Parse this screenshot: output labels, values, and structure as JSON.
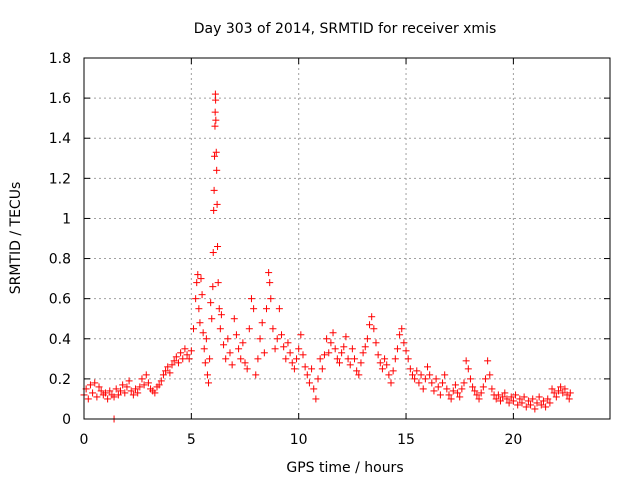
{
  "chart_data": {
    "type": "scatter",
    "title": "Day 303 of 2014, SRMTID for receiver xmis",
    "xlabel": "GPS time / hours",
    "ylabel": "SRMTID / TECUs",
    "xlim": [
      0,
      24.5
    ],
    "ylim": [
      0,
      1.8
    ],
    "xticks": [
      0,
      5,
      10,
      15,
      20
    ],
    "yticks": [
      0,
      0.2,
      0.4,
      0.6,
      0.8,
      1,
      1.2,
      1.4,
      1.6,
      1.8
    ],
    "xtick_labels": [
      "0",
      "5",
      "10",
      "15",
      "20"
    ],
    "ytick_labels": [
      "0",
      "0.2",
      "0.4",
      "0.6",
      "0.8",
      "1",
      "1.2",
      "1.4",
      "1.6",
      "1.8"
    ],
    "grid": true,
    "marker": "+",
    "series": [
      {
        "name": "SRMTID",
        "color": "#ff0000",
        "points": [
          [
            0.0,
            0.12
          ],
          [
            0.1,
            0.15
          ],
          [
            0.2,
            0.1
          ],
          [
            0.3,
            0.17
          ],
          [
            0.4,
            0.13
          ],
          [
            0.5,
            0.18
          ],
          [
            0.6,
            0.11
          ],
          [
            0.7,
            0.16
          ],
          [
            0.8,
            0.14
          ],
          [
            0.9,
            0.12
          ],
          [
            1.0,
            0.13
          ],
          [
            1.1,
            0.1
          ],
          [
            1.2,
            0.14
          ],
          [
            1.3,
            0.12
          ],
          [
            1.4,
            0.11
          ],
          [
            1.5,
            0.15
          ],
          [
            1.6,
            0.12
          ],
          [
            1.7,
            0.14
          ],
          [
            1.8,
            0.17
          ],
          [
            1.9,
            0.13
          ],
          [
            2.0,
            0.16
          ],
          [
            2.1,
            0.19
          ],
          [
            2.2,
            0.14
          ],
          [
            2.3,
            0.12
          ],
          [
            2.4,
            0.15
          ],
          [
            2.5,
            0.13
          ],
          [
            2.6,
            0.16
          ],
          [
            2.7,
            0.2
          ],
          [
            2.8,
            0.17
          ],
          [
            2.9,
            0.22
          ],
          [
            3.0,
            0.18
          ],
          [
            3.1,
            0.15
          ],
          [
            3.2,
            0.14
          ],
          [
            3.3,
            0.13
          ],
          [
            3.4,
            0.16
          ],
          [
            3.5,
            0.17
          ],
          [
            3.6,
            0.19
          ],
          [
            3.7,
            0.22
          ],
          [
            3.8,
            0.24
          ],
          [
            3.9,
            0.26
          ],
          [
            4.0,
            0.23
          ],
          [
            4.1,
            0.27
          ],
          [
            4.2,
            0.29
          ],
          [
            4.3,
            0.31
          ],
          [
            4.4,
            0.28
          ],
          [
            4.5,
            0.33
          ],
          [
            4.6,
            0.3
          ],
          [
            4.7,
            0.35
          ],
          [
            4.8,
            0.32
          ],
          [
            4.9,
            0.3
          ],
          [
            5.0,
            0.34
          ],
          [
            5.1,
            0.45
          ],
          [
            5.2,
            0.6
          ],
          [
            5.25,
            0.68
          ],
          [
            5.3,
            0.72
          ],
          [
            5.35,
            0.55
          ],
          [
            5.4,
            0.48
          ],
          [
            5.45,
            0.7
          ],
          [
            5.5,
            0.62
          ],
          [
            5.55,
            0.43
          ],
          [
            5.6,
            0.35
          ],
          [
            5.65,
            0.28
          ],
          [
            5.7,
            0.4
          ],
          [
            5.75,
            0.22
          ],
          [
            5.8,
            0.18
          ],
          [
            5.85,
            0.3
          ],
          [
            5.9,
            0.58
          ],
          [
            5.95,
            0.5
          ],
          [
            6.0,
            0.66
          ],
          [
            6.02,
            0.83
          ],
          [
            6.04,
            1.04
          ],
          [
            6.06,
            1.14
          ],
          [
            6.08,
            1.31
          ],
          [
            6.1,
            1.46
          ],
          [
            6.11,
            1.53
          ],
          [
            6.12,
            1.62
          ],
          [
            6.13,
            1.59
          ],
          [
            6.14,
            1.49
          ],
          [
            6.16,
            1.33
          ],
          [
            6.18,
            1.24
          ],
          [
            6.2,
            1.07
          ],
          [
            6.22,
            0.86
          ],
          [
            6.25,
            0.68
          ],
          [
            6.3,
            0.55
          ],
          [
            6.35,
            0.45
          ],
          [
            6.4,
            0.52
          ],
          [
            6.5,
            0.37
          ],
          [
            6.6,
            0.3
          ],
          [
            6.7,
            0.4
          ],
          [
            6.8,
            0.33
          ],
          [
            6.9,
            0.27
          ],
          [
            7.0,
            0.5
          ],
          [
            7.1,
            0.42
          ],
          [
            7.2,
            0.35
          ],
          [
            7.3,
            0.3
          ],
          [
            7.4,
            0.38
          ],
          [
            7.5,
            0.28
          ],
          [
            7.6,
            0.25
          ],
          [
            7.7,
            0.45
          ],
          [
            7.8,
            0.6
          ],
          [
            7.9,
            0.55
          ],
          [
            8.0,
            0.22
          ],
          [
            8.1,
            0.3
          ],
          [
            8.2,
            0.4
          ],
          [
            8.3,
            0.48
          ],
          [
            8.4,
            0.33
          ],
          [
            8.5,
            0.55
          ],
          [
            8.6,
            0.73
          ],
          [
            8.65,
            0.68
          ],
          [
            8.7,
            0.6
          ],
          [
            8.8,
            0.45
          ],
          [
            8.9,
            0.35
          ],
          [
            9.0,
            0.4
          ],
          [
            9.1,
            0.55
          ],
          [
            9.2,
            0.42
          ],
          [
            9.3,
            0.36
          ],
          [
            9.4,
            0.3
          ],
          [
            9.5,
            0.38
          ],
          [
            9.6,
            0.33
          ],
          [
            9.7,
            0.28
          ],
          [
            9.8,
            0.25
          ],
          [
            9.9,
            0.3
          ],
          [
            10.0,
            0.35
          ],
          [
            10.1,
            0.42
          ],
          [
            10.2,
            0.32
          ],
          [
            10.3,
            0.26
          ],
          [
            10.4,
            0.22
          ],
          [
            10.5,
            0.18
          ],
          [
            10.6,
            0.25
          ],
          [
            10.7,
            0.15
          ],
          [
            10.8,
            0.1
          ],
          [
            10.9,
            0.2
          ],
          [
            11.0,
            0.3
          ],
          [
            11.1,
            0.25
          ],
          [
            11.2,
            0.32
          ],
          [
            11.3,
            0.4
          ],
          [
            11.4,
            0.33
          ],
          [
            11.5,
            0.38
          ],
          [
            11.6,
            0.43
          ],
          [
            11.7,
            0.35
          ],
          [
            11.8,
            0.3
          ],
          [
            11.9,
            0.28
          ],
          [
            12.0,
            0.33
          ],
          [
            12.1,
            0.36
          ],
          [
            12.2,
            0.41
          ],
          [
            12.3,
            0.3
          ],
          [
            12.4,
            0.27
          ],
          [
            12.5,
            0.35
          ],
          [
            12.6,
            0.3
          ],
          [
            12.7,
            0.24
          ],
          [
            12.8,
            0.22
          ],
          [
            12.9,
            0.28
          ],
          [
            13.0,
            0.33
          ],
          [
            13.1,
            0.36
          ],
          [
            13.2,
            0.4
          ],
          [
            13.3,
            0.47
          ],
          [
            13.4,
            0.51
          ],
          [
            13.5,
            0.45
          ],
          [
            13.6,
            0.38
          ],
          [
            13.7,
            0.32
          ],
          [
            13.8,
            0.28
          ],
          [
            13.9,
            0.25
          ],
          [
            14.0,
            0.3
          ],
          [
            14.1,
            0.27
          ],
          [
            14.2,
            0.22
          ],
          [
            14.3,
            0.18
          ],
          [
            14.4,
            0.24
          ],
          [
            14.5,
            0.3
          ],
          [
            14.6,
            0.35
          ],
          [
            14.7,
            0.42
          ],
          [
            14.8,
            0.45
          ],
          [
            14.9,
            0.38
          ],
          [
            15.0,
            0.34
          ],
          [
            15.1,
            0.3
          ],
          [
            15.2,
            0.25
          ],
          [
            15.3,
            0.22
          ],
          [
            15.4,
            0.2
          ],
          [
            15.5,
            0.24
          ],
          [
            15.6,
            0.18
          ],
          [
            15.7,
            0.22
          ],
          [
            15.8,
            0.15
          ],
          [
            15.9,
            0.2
          ],
          [
            16.0,
            0.26
          ],
          [
            16.1,
            0.22
          ],
          [
            16.2,
            0.18
          ],
          [
            16.3,
            0.14
          ],
          [
            16.4,
            0.2
          ],
          [
            16.5,
            0.16
          ],
          [
            16.6,
            0.12
          ],
          [
            16.7,
            0.18
          ],
          [
            16.8,
            0.22
          ],
          [
            16.9,
            0.15
          ],
          [
            17.0,
            0.12
          ],
          [
            17.1,
            0.1
          ],
          [
            17.2,
            0.14
          ],
          [
            17.3,
            0.17
          ],
          [
            17.4,
            0.13
          ],
          [
            17.5,
            0.11
          ],
          [
            17.6,
            0.15
          ],
          [
            17.7,
            0.18
          ],
          [
            17.8,
            0.29
          ],
          [
            17.9,
            0.25
          ],
          [
            18.0,
            0.2
          ],
          [
            18.1,
            0.16
          ],
          [
            18.2,
            0.14
          ],
          [
            18.3,
            0.12
          ],
          [
            18.4,
            0.1
          ],
          [
            18.5,
            0.13
          ],
          [
            18.6,
            0.16
          ],
          [
            18.7,
            0.2
          ],
          [
            18.8,
            0.29
          ],
          [
            18.9,
            0.22
          ],
          [
            19.0,
            0.15
          ],
          [
            19.1,
            0.12
          ],
          [
            19.2,
            0.1
          ],
          [
            19.3,
            0.12
          ],
          [
            19.4,
            0.09
          ],
          [
            19.5,
            0.11
          ],
          [
            19.6,
            0.13
          ],
          [
            19.7,
            0.1
          ],
          [
            19.8,
            0.08
          ],
          [
            19.9,
            0.11
          ],
          [
            20.0,
            0.09
          ],
          [
            20.1,
            0.12
          ],
          [
            20.2,
            0.07
          ],
          [
            20.3,
            0.1
          ],
          [
            20.4,
            0.08
          ],
          [
            20.5,
            0.11
          ],
          [
            20.6,
            0.06
          ],
          [
            20.7,
            0.09
          ],
          [
            20.8,
            0.07
          ],
          [
            20.9,
            0.1
          ],
          [
            21.0,
            0.05
          ],
          [
            21.1,
            0.08
          ],
          [
            21.2,
            0.11
          ],
          [
            21.3,
            0.07
          ],
          [
            21.4,
            0.09
          ],
          [
            21.5,
            0.06
          ],
          [
            21.6,
            0.1
          ],
          [
            21.7,
            0.08
          ],
          [
            21.8,
            0.15
          ],
          [
            21.9,
            0.13
          ],
          [
            22.0,
            0.11
          ],
          [
            22.1,
            0.14
          ],
          [
            22.2,
            0.16
          ],
          [
            22.3,
            0.13
          ],
          [
            22.4,
            0.15
          ],
          [
            22.5,
            0.12
          ],
          [
            22.6,
            0.1
          ],
          [
            22.65,
            0.13
          ],
          [
            1.4,
            0.0
          ]
        ]
      }
    ]
  }
}
